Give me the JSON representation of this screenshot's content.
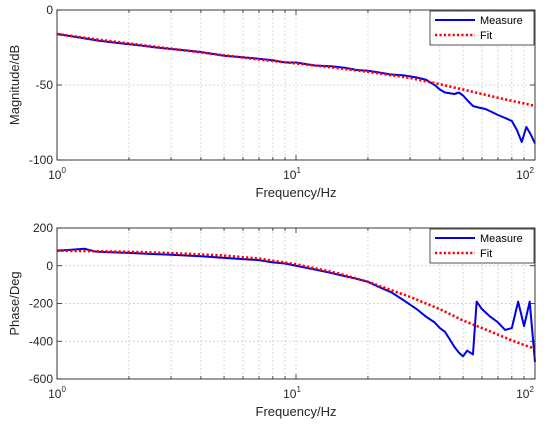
{
  "colors": {
    "measure": "#0000e6",
    "fit": "#ff0000",
    "axes": "#262626",
    "grid": "#b8b8b8"
  },
  "chart_data": [
    {
      "type": "line",
      "xscale": "log",
      "xlim": [
        1,
        100
      ],
      "ylim": [
        -100,
        0
      ],
      "xlabel": "Frequency/Hz",
      "ylabel": "Magnitude/dB",
      "xticks": [
        {
          "base": "10",
          "exp": "0",
          "value": 1
        },
        {
          "base": "10",
          "exp": "1",
          "value": 10
        },
        {
          "base": "10",
          "exp": "2",
          "value": 100
        }
      ],
      "yticks": [
        {
          "label": "0",
          "value": 0
        },
        {
          "label": "-50",
          "value": -50
        },
        {
          "label": "-100",
          "value": -100
        }
      ],
      "grid": true,
      "legend": "top-right",
      "series": [
        {
          "name": "Measure",
          "color": "#0000e6",
          "style": "solid",
          "points": [
            [
              1,
              -16
            ],
            [
              1.2,
              -18
            ],
            [
              1.5,
              -20.5
            ],
            [
              1.8,
              -22
            ],
            [
              2.2,
              -23.5
            ],
            [
              2.6,
              -25
            ],
            [
              3,
              -26
            ],
            [
              3.5,
              -27
            ],
            [
              4,
              -28
            ],
            [
              5,
              -30.5
            ],
            [
              6,
              -31.5
            ],
            [
              7,
              -32.5
            ],
            [
              8,
              -33.5
            ],
            [
              9,
              -35
            ],
            [
              10,
              -35
            ],
            [
              12,
              -37
            ],
            [
              14,
              -37.5
            ],
            [
              16,
              -38.5
            ],
            [
              18,
              -40
            ],
            [
              20,
              -40.5
            ],
            [
              22,
              -41.5
            ],
            [
              25,
              -43
            ],
            [
              28,
              -43.5
            ],
            [
              32,
              -45
            ],
            [
              35,
              -46.5
            ],
            [
              38,
              -50
            ],
            [
              40,
              -53
            ],
            [
              42,
              -55
            ],
            [
              44,
              -55.5
            ],
            [
              46,
              -56
            ],
            [
              48,
              -55
            ],
            [
              50,
              -57
            ],
            [
              52,
              -60
            ],
            [
              55,
              -64
            ],
            [
              58,
              -65
            ],
            [
              62,
              -66
            ],
            [
              66,
              -68
            ],
            [
              70,
              -70
            ],
            [
              75,
              -72
            ],
            [
              80,
              -74
            ],
            [
              84,
              -80
            ],
            [
              88,
              -88
            ],
            [
              92,
              -78
            ],
            [
              96,
              -83
            ],
            [
              100,
              -89
            ]
          ]
        },
        {
          "name": "Fit",
          "color": "#ff0000",
          "style": "dotted",
          "points": [
            [
              1,
              -16
            ],
            [
              1.5,
              -19.8
            ],
            [
              2,
              -22.3
            ],
            [
              3,
              -25.8
            ],
            [
              4,
              -28.3
            ],
            [
              5,
              -30.2
            ],
            [
              7,
              -33
            ],
            [
              10,
              -35.6
            ],
            [
              14,
              -38.2
            ],
            [
              20,
              -41.2
            ],
            [
              30,
              -45.3
            ],
            [
              40,
              -49.5
            ],
            [
              50,
              -53
            ],
            [
              60,
              -56
            ],
            [
              70,
              -58.5
            ],
            [
              80,
              -60.6
            ],
            [
              90,
              -62.3
            ],
            [
              100,
              -64
            ]
          ]
        }
      ]
    },
    {
      "type": "line",
      "xscale": "log",
      "xlim": [
        1,
        100
      ],
      "ylim": [
        -600,
        200
      ],
      "xlabel": "Frequency/Hz",
      "ylabel": "Phase/Deg",
      "xticks": [
        {
          "base": "10",
          "exp": "0",
          "value": 1
        },
        {
          "base": "10",
          "exp": "1",
          "value": 10
        },
        {
          "base": "10",
          "exp": "2",
          "value": 100
        }
      ],
      "yticks": [
        {
          "label": "200",
          "value": 200
        },
        {
          "label": "0",
          "value": 0
        },
        {
          "label": "-200",
          "value": -200
        },
        {
          "label": "-400",
          "value": -400
        },
        {
          "label": "-600",
          "value": -600
        }
      ],
      "grid": true,
      "legend": "top-right",
      "series": [
        {
          "name": "Measure",
          "color": "#0000e6",
          "style": "solid",
          "points": [
            [
              1,
              80
            ],
            [
              1.15,
              85
            ],
            [
              1.3,
              90
            ],
            [
              1.45,
              75
            ],
            [
              1.6,
              72
            ],
            [
              2,
              68
            ],
            [
              2.5,
              62
            ],
            [
              3,
              58
            ],
            [
              4,
              50
            ],
            [
              5,
              42
            ],
            [
              6,
              35
            ],
            [
              7,
              30
            ],
            [
              8,
              18
            ],
            [
              9,
              12
            ],
            [
              10,
              0
            ],
            [
              12,
              -20
            ],
            [
              14,
              -38
            ],
            [
              16,
              -55
            ],
            [
              18,
              -70
            ],
            [
              20,
              -85
            ],
            [
              22,
              -110
            ],
            [
              25,
              -140
            ],
            [
              28,
              -180
            ],
            [
              32,
              -230
            ],
            [
              35,
              -270
            ],
            [
              38,
              -300
            ],
            [
              40,
              -330
            ],
            [
              42,
              -350
            ],
            [
              44,
              -390
            ],
            [
              46,
              -430
            ],
            [
              48,
              -460
            ],
            [
              50,
              -480
            ],
            [
              52,
              -450
            ],
            [
              55,
              -470
            ],
            [
              57,
              -190
            ],
            [
              60,
              -230
            ],
            [
              65,
              -270
            ],
            [
              70,
              -300
            ],
            [
              75,
              -340
            ],
            [
              80,
              -330
            ],
            [
              85,
              -190
            ],
            [
              90,
              -320
            ],
            [
              95,
              -190
            ],
            [
              100,
              -510
            ]
          ]
        },
        {
          "name": "Fit",
          "color": "#ff0000",
          "style": "dotted",
          "points": [
            [
              1,
              80
            ],
            [
              2,
              74
            ],
            [
              3,
              67
            ],
            [
              5,
              54
            ],
            [
              7,
              38
            ],
            [
              10,
              8
            ],
            [
              15,
              -40
            ],
            [
              20,
              -85
            ],
            [
              30,
              -165
            ],
            [
              40,
              -230
            ],
            [
              50,
              -290
            ],
            [
              60,
              -330
            ],
            [
              70,
              -365
            ],
            [
              80,
              -395
            ],
            [
              90,
              -420
            ],
            [
              100,
              -440
            ]
          ]
        }
      ]
    }
  ]
}
